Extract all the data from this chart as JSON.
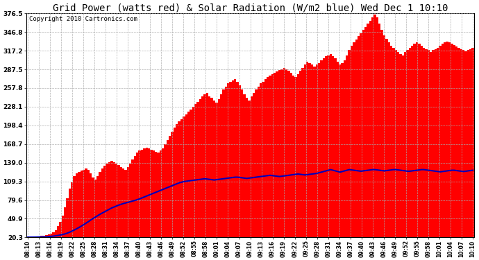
{
  "title": "Grid Power (watts red) & Solar Radiation (W/m2 blue) Wed Dec 1 10:10",
  "copyright": "Copyright 2010 Cartronics.com",
  "yticks": [
    20.3,
    49.9,
    79.6,
    109.3,
    139.0,
    168.7,
    198.4,
    228.1,
    257.8,
    287.5,
    317.2,
    346.8,
    376.5
  ],
  "ymin": 20.3,
  "ymax": 376.5,
  "bar_color": "#FF0000",
  "line_color": "#0000BB",
  "background_color": "#FFFFFF",
  "grid_color": "#AAAAAA",
  "title_fontsize": 10,
  "copyright_fontsize": 6.5,
  "xtick_labels": [
    "08:10",
    "08:13",
    "08:16",
    "08:19",
    "08:22",
    "08:25",
    "08:28",
    "08:31",
    "08:34",
    "08:37",
    "08:40",
    "08:43",
    "08:46",
    "08:49",
    "08:52",
    "08:55",
    "08:58",
    "09:01",
    "09:04",
    "09:07",
    "09:10",
    "09:13",
    "09:16",
    "09:19",
    "09:22",
    "09:25",
    "09:28",
    "09:31",
    "09:34",
    "09:37",
    "09:40",
    "09:43",
    "09:46",
    "09:49",
    "09:52",
    "09:55",
    "09:58",
    "10:01",
    "10:04",
    "10:07",
    "10:10"
  ],
  "bar_values": [
    21,
    21,
    21,
    22,
    22,
    22,
    23,
    23,
    24,
    25,
    26,
    28,
    32,
    38,
    45,
    55,
    68,
    82,
    98,
    108,
    118,
    122,
    124,
    126,
    128,
    130,
    128,
    122,
    116,
    112,
    118,
    124,
    130,
    134,
    138,
    140,
    142,
    140,
    138,
    135,
    132,
    130,
    128,
    132,
    138,
    144,
    150,
    155,
    158,
    160,
    162,
    163,
    162,
    160,
    158,
    156,
    155,
    158,
    162,
    168,
    175,
    182,
    188,
    195,
    200,
    205,
    208,
    212,
    216,
    220,
    224,
    228,
    232,
    236,
    240,
    244,
    248,
    250,
    245,
    242,
    238,
    235,
    240,
    248,
    255,
    260,
    265,
    268,
    270,
    272,
    268,
    262,
    255,
    248,
    242,
    238,
    244,
    250,
    255,
    260,
    265,
    268,
    272,
    275,
    278,
    280,
    282,
    284,
    286,
    288,
    290,
    288,
    285,
    282,
    278,
    275,
    280,
    285,
    290,
    295,
    300,
    298,
    295,
    292,
    295,
    298,
    302,
    305,
    308,
    310,
    312,
    308,
    305,
    300,
    295,
    298,
    302,
    310,
    318,
    325,
    330,
    335,
    340,
    345,
    350,
    355,
    360,
    365,
    370,
    375,
    370,
    360,
    350,
    342,
    336,
    330,
    325,
    322,
    318,
    315,
    312,
    310,
    315,
    318,
    322,
    325,
    328,
    330,
    328,
    325,
    322,
    320,
    318,
    315,
    318,
    320,
    322,
    325,
    328,
    330,
    332,
    330,
    328,
    326,
    324,
    322,
    320,
    318,
    316,
    318,
    320,
    322,
    325
  ],
  "line_values": [
    20.5,
    20.5,
    20.6,
    20.6,
    20.7,
    20.7,
    20.8,
    21.0,
    21.2,
    21.5,
    21.8,
    22.2,
    22.7,
    23.3,
    24.0,
    24.8,
    25.8,
    27.0,
    28.5,
    30.2,
    32.0,
    34.0,
    36.0,
    38.2,
    40.5,
    42.8,
    45.2,
    47.8,
    50.2,
    52.5,
    54.8,
    57.0,
    59.0,
    61.0,
    63.0,
    65.0,
    67.0,
    68.5,
    70.0,
    71.5,
    72.8,
    74.0,
    75.0,
    76.0,
    77.0,
    78.0,
    79.0,
    80.2,
    81.5,
    83.0,
    84.5,
    86.0,
    87.5,
    89.0,
    90.5,
    92.0,
    93.5,
    95.0,
    96.5,
    98.0,
    99.5,
    101.0,
    102.5,
    104.0,
    105.5,
    107.0,
    108.0,
    109.0,
    109.5,
    110.0,
    110.5,
    111.0,
    111.5,
    112.0,
    112.5,
    113.0,
    113.5,
    113.0,
    112.5,
    112.0,
    111.5,
    112.0,
    112.5,
    113.0,
    113.5,
    114.0,
    114.5,
    115.0,
    115.5,
    116.0,
    116.0,
    115.5,
    115.0,
    114.5,
    114.0,
    114.5,
    115.0,
    115.5,
    116.0,
    116.5,
    117.0,
    117.5,
    118.0,
    118.5,
    119.0,
    118.5,
    118.0,
    117.5,
    117.0,
    117.5,
    118.0,
    118.5,
    119.0,
    119.5,
    120.0,
    120.5,
    121.0,
    120.5,
    120.0,
    119.5,
    120.0,
    120.5,
    121.0,
    121.5,
    122.0,
    123.0,
    124.0,
    125.0,
    126.0,
    127.0,
    128.0,
    127.0,
    126.0,
    125.0,
    124.0,
    125.0,
    126.0,
    127.0,
    128.0,
    127.5,
    127.0,
    126.5,
    126.0,
    125.5,
    126.0,
    126.5,
    127.0,
    127.5,
    128.0,
    128.0,
    127.5,
    127.0,
    126.5,
    126.0,
    126.5,
    127.0,
    127.5,
    128.0,
    128.0,
    127.5,
    127.0,
    126.5,
    126.0,
    125.5,
    125.5,
    126.0,
    126.5,
    127.0,
    127.5,
    128.0,
    128.0,
    127.5,
    127.0,
    126.5,
    126.0,
    125.5,
    125.0,
    124.5,
    125.0,
    125.5,
    126.0,
    126.5,
    127.0,
    127.0,
    126.5,
    126.0,
    125.5,
    125.0,
    125.5,
    126.0,
    126.5,
    127.0
  ]
}
